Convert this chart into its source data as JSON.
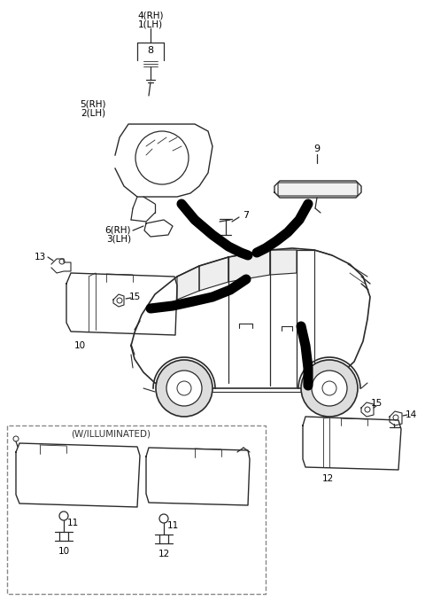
{
  "bg_color": "#ffffff",
  "line_color": "#2a2a2a",
  "figsize": [
    4.8,
    6.78
  ],
  "dpi": 100,
  "labels": {
    "4rh1lh": "4(RH)\n1(LH)",
    "8": "8",
    "5rh2lh": "5(RH)\n2(LH)",
    "6rh3lh": "6(RH)\n3(LH)",
    "7": "7",
    "9": "9",
    "13": "13",
    "15a": "15",
    "10a": "10",
    "15b": "15",
    "14": "14",
    "12a": "12",
    "w_ill": "(W/ILLUMINATED)",
    "11a": "11",
    "10b": "10",
    "11b": "11",
    "12b": "12"
  }
}
